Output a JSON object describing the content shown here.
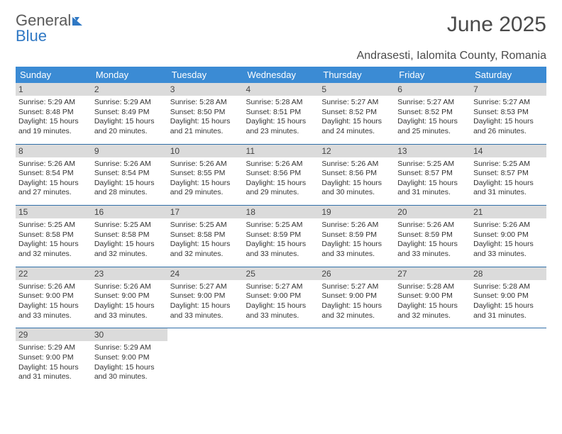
{
  "logo": {
    "line1": "General",
    "line2": "Blue"
  },
  "title": "June 2025",
  "location": "Andrasesti, Ialomita County, Romania",
  "colors": {
    "header_bg": "#3b8bd4",
    "header_text": "#ffffff",
    "daynum_bg": "#dbdbdb",
    "row_border": "#2f6fa8",
    "logo_accent": "#2f78c4"
  },
  "weekdays": [
    "Sunday",
    "Monday",
    "Tuesday",
    "Wednesday",
    "Thursday",
    "Friday",
    "Saturday"
  ],
  "weeks": [
    [
      {
        "n": "1",
        "sr": "5:29 AM",
        "ss": "8:48 PM",
        "dh": "15",
        "dm": "19"
      },
      {
        "n": "2",
        "sr": "5:29 AM",
        "ss": "8:49 PM",
        "dh": "15",
        "dm": "20"
      },
      {
        "n": "3",
        "sr": "5:28 AM",
        "ss": "8:50 PM",
        "dh": "15",
        "dm": "21"
      },
      {
        "n": "4",
        "sr": "5:28 AM",
        "ss": "8:51 PM",
        "dh": "15",
        "dm": "23"
      },
      {
        "n": "5",
        "sr": "5:27 AM",
        "ss": "8:52 PM",
        "dh": "15",
        "dm": "24"
      },
      {
        "n": "6",
        "sr": "5:27 AM",
        "ss": "8:52 PM",
        "dh": "15",
        "dm": "25"
      },
      {
        "n": "7",
        "sr": "5:27 AM",
        "ss": "8:53 PM",
        "dh": "15",
        "dm": "26"
      }
    ],
    [
      {
        "n": "8",
        "sr": "5:26 AM",
        "ss": "8:54 PM",
        "dh": "15",
        "dm": "27"
      },
      {
        "n": "9",
        "sr": "5:26 AM",
        "ss": "8:54 PM",
        "dh": "15",
        "dm": "28"
      },
      {
        "n": "10",
        "sr": "5:26 AM",
        "ss": "8:55 PM",
        "dh": "15",
        "dm": "29"
      },
      {
        "n": "11",
        "sr": "5:26 AM",
        "ss": "8:56 PM",
        "dh": "15",
        "dm": "29"
      },
      {
        "n": "12",
        "sr": "5:26 AM",
        "ss": "8:56 PM",
        "dh": "15",
        "dm": "30"
      },
      {
        "n": "13",
        "sr": "5:25 AM",
        "ss": "8:57 PM",
        "dh": "15",
        "dm": "31"
      },
      {
        "n": "14",
        "sr": "5:25 AM",
        "ss": "8:57 PM",
        "dh": "15",
        "dm": "31"
      }
    ],
    [
      {
        "n": "15",
        "sr": "5:25 AM",
        "ss": "8:58 PM",
        "dh": "15",
        "dm": "32"
      },
      {
        "n": "16",
        "sr": "5:25 AM",
        "ss": "8:58 PM",
        "dh": "15",
        "dm": "32"
      },
      {
        "n": "17",
        "sr": "5:25 AM",
        "ss": "8:58 PM",
        "dh": "15",
        "dm": "32"
      },
      {
        "n": "18",
        "sr": "5:25 AM",
        "ss": "8:59 PM",
        "dh": "15",
        "dm": "33"
      },
      {
        "n": "19",
        "sr": "5:26 AM",
        "ss": "8:59 PM",
        "dh": "15",
        "dm": "33"
      },
      {
        "n": "20",
        "sr": "5:26 AM",
        "ss": "8:59 PM",
        "dh": "15",
        "dm": "33"
      },
      {
        "n": "21",
        "sr": "5:26 AM",
        "ss": "9:00 PM",
        "dh": "15",
        "dm": "33"
      }
    ],
    [
      {
        "n": "22",
        "sr": "5:26 AM",
        "ss": "9:00 PM",
        "dh": "15",
        "dm": "33"
      },
      {
        "n": "23",
        "sr": "5:26 AM",
        "ss": "9:00 PM",
        "dh": "15",
        "dm": "33"
      },
      {
        "n": "24",
        "sr": "5:27 AM",
        "ss": "9:00 PM",
        "dh": "15",
        "dm": "33"
      },
      {
        "n": "25",
        "sr": "5:27 AM",
        "ss": "9:00 PM",
        "dh": "15",
        "dm": "33"
      },
      {
        "n": "26",
        "sr": "5:27 AM",
        "ss": "9:00 PM",
        "dh": "15",
        "dm": "32"
      },
      {
        "n": "27",
        "sr": "5:28 AM",
        "ss": "9:00 PM",
        "dh": "15",
        "dm": "32"
      },
      {
        "n": "28",
        "sr": "5:28 AM",
        "ss": "9:00 PM",
        "dh": "15",
        "dm": "31"
      }
    ],
    [
      {
        "n": "29",
        "sr": "5:29 AM",
        "ss": "9:00 PM",
        "dh": "15",
        "dm": "31"
      },
      {
        "n": "30",
        "sr": "5:29 AM",
        "ss": "9:00 PM",
        "dh": "15",
        "dm": "30"
      },
      null,
      null,
      null,
      null,
      null
    ]
  ]
}
